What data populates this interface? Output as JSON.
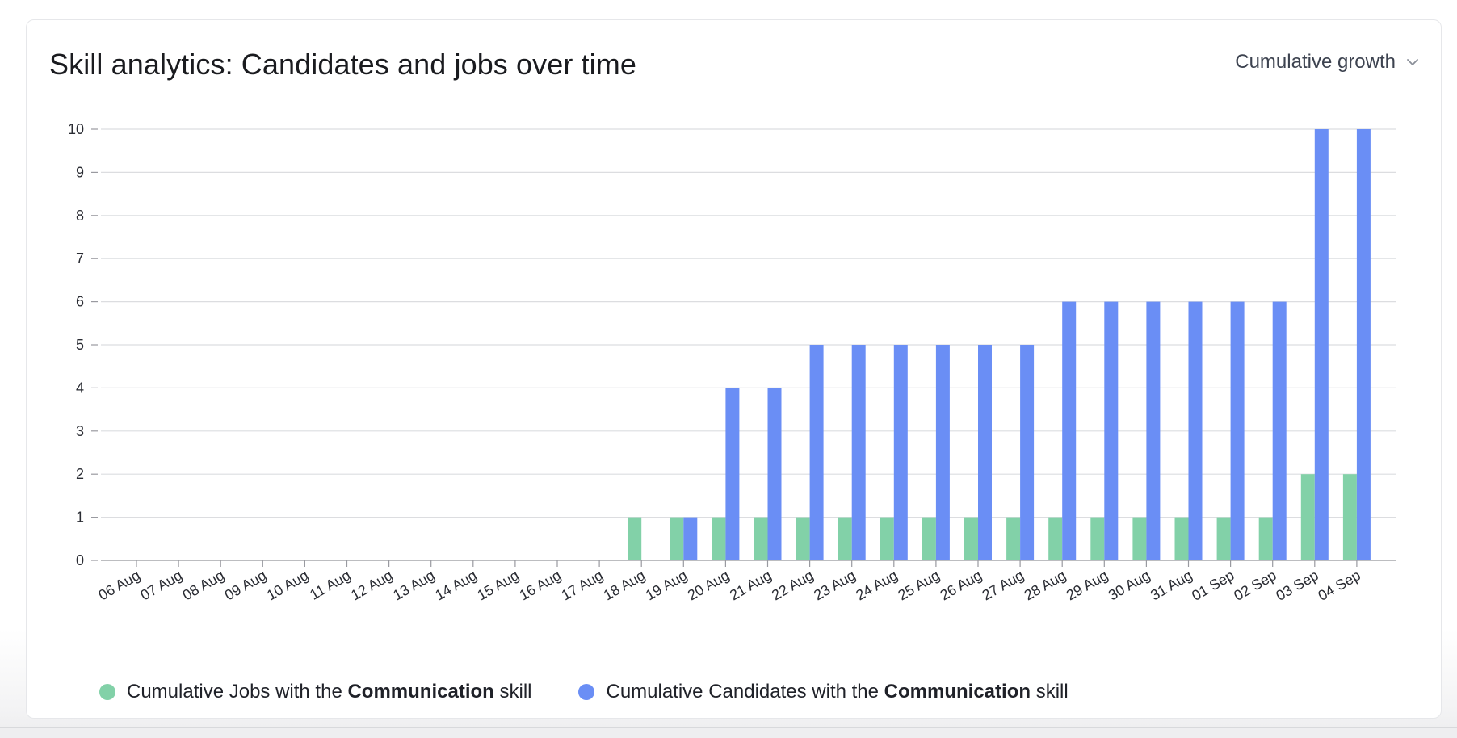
{
  "header": {
    "title": "Skill analytics: Candidates and jobs over time",
    "dropdown_label": "Cumulative growth"
  },
  "colors": {
    "jobs": "#82d1a8",
    "candidates": "#6a8ef5",
    "grid": "#dcdde0",
    "axis": "#999aa0",
    "text": "#2a2c33"
  },
  "legend": {
    "jobs": {
      "prefix": "Cumulative Jobs with the",
      "skill": "Communication",
      "suffix": "skill"
    },
    "candidates": {
      "prefix": "Cumulative Candidates with the",
      "skill": "Communication",
      "suffix": "skill"
    }
  },
  "chart_data": {
    "type": "bar",
    "title": "Skill analytics: Candidates and jobs over time",
    "xlabel": "",
    "ylabel": "",
    "ylim": [
      0,
      10
    ],
    "yticks": [
      0,
      1,
      2,
      3,
      4,
      5,
      6,
      7,
      8,
      9,
      10
    ],
    "grid": true,
    "legend_position": "bottom-left",
    "categories": [
      "06 Aug",
      "07 Aug",
      "08 Aug",
      "09 Aug",
      "10 Aug",
      "11 Aug",
      "12 Aug",
      "13 Aug",
      "14 Aug",
      "15 Aug",
      "16 Aug",
      "17 Aug",
      "18 Aug",
      "19 Aug",
      "20 Aug",
      "21 Aug",
      "22 Aug",
      "23 Aug",
      "24 Aug",
      "25 Aug",
      "26 Aug",
      "27 Aug",
      "28 Aug",
      "29 Aug",
      "30 Aug",
      "31 Aug",
      "01 Sep",
      "02 Sep",
      "03 Sep",
      "04 Sep"
    ],
    "series": [
      {
        "name": "Cumulative Jobs with the Communication skill",
        "color": "#82d1a8",
        "values": [
          0,
          0,
          0,
          0,
          0,
          0,
          0,
          0,
          0,
          0,
          0,
          0,
          1,
          1,
          1,
          1,
          1,
          1,
          1,
          1,
          1,
          1,
          1,
          1,
          1,
          1,
          1,
          1,
          2,
          2
        ]
      },
      {
        "name": "Cumulative Candidates with the Communication skill",
        "color": "#6a8ef5",
        "values": [
          0,
          0,
          0,
          0,
          0,
          0,
          0,
          0,
          0,
          0,
          0,
          0,
          0,
          1,
          4,
          4,
          5,
          5,
          5,
          5,
          5,
          5,
          6,
          6,
          6,
          6,
          6,
          6,
          10,
          10
        ]
      }
    ]
  }
}
